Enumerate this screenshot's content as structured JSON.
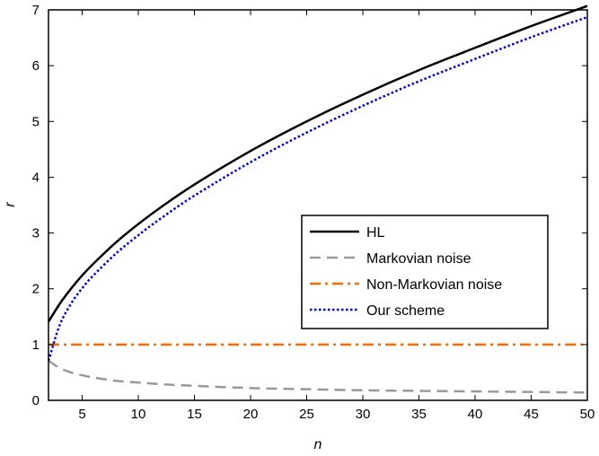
{
  "chart_data": {
    "type": "line",
    "title": "",
    "xlabel": "n",
    "ylabel": "r",
    "xlim": [
      2,
      50
    ],
    "ylim": [
      0,
      7
    ],
    "xticks": [
      5,
      10,
      15,
      20,
      25,
      30,
      35,
      40,
      45,
      50
    ],
    "yticks": [
      0,
      1,
      2,
      3,
      4,
      5,
      6,
      7
    ],
    "grid": false,
    "legend_position": "center-right",
    "x": [
      2,
      3,
      4,
      5,
      6,
      8,
      10,
      12,
      15,
      20,
      25,
      30,
      35,
      40,
      45,
      50
    ],
    "series": [
      {
        "name": "HL",
        "color": "#000000",
        "style": "solid",
        "values": [
          1.41,
          1.73,
          2.0,
          2.24,
          2.45,
          2.83,
          3.16,
          3.46,
          3.87,
          4.47,
          5.0,
          5.48,
          5.92,
          6.32,
          6.71,
          7.07
        ]
      },
      {
        "name": "Markovian noise",
        "color": "#999999",
        "style": "dashed",
        "values": [
          0.71,
          0.58,
          0.5,
          0.45,
          0.41,
          0.35,
          0.32,
          0.29,
          0.26,
          0.22,
          0.2,
          0.18,
          0.17,
          0.16,
          0.15,
          0.14
        ]
      },
      {
        "name": "Non-Markovian noise",
        "color": "#ff6a00",
        "style": "dashdot",
        "values": [
          1,
          1,
          1,
          1,
          1,
          1,
          1,
          1,
          1,
          1,
          1,
          1,
          1,
          1,
          1,
          1
        ]
      },
      {
        "name": "Our scheme",
        "color": "#0000ee",
        "style": "dotted",
        "values": [
          0.71,
          1.35,
          1.73,
          2.01,
          2.24,
          2.63,
          2.96,
          3.26,
          3.67,
          4.27,
          4.8,
          5.28,
          5.72,
          6.12,
          6.51,
          6.87
        ]
      }
    ]
  }
}
